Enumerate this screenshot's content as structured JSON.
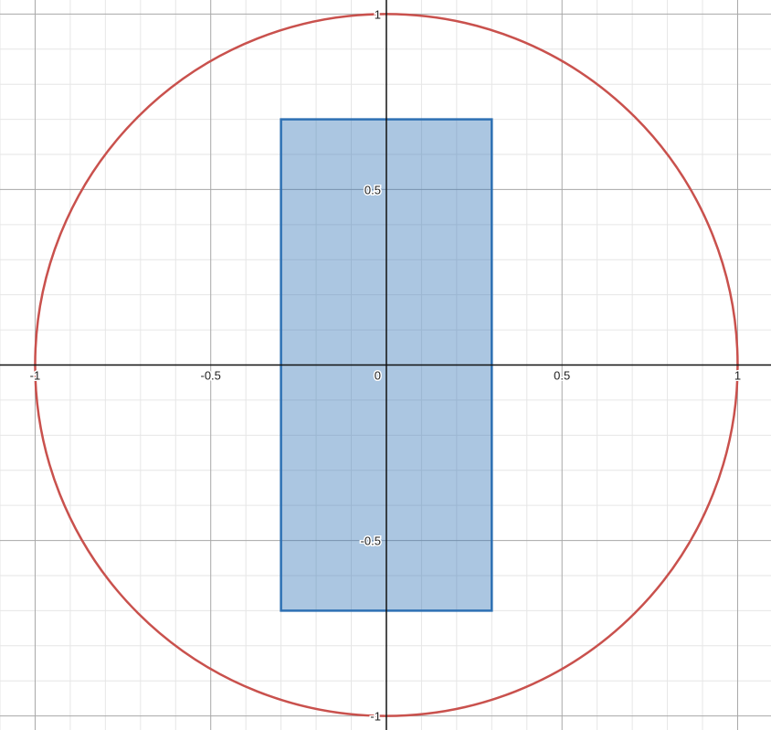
{
  "chart_data": {
    "type": "scatter",
    "title": "",
    "xlabel": "",
    "ylabel": "",
    "xlim": [
      -1.1,
      1.095
    ],
    "ylim": [
      -1.04,
      1.04
    ],
    "grid": true,
    "minor_grid_step": 0.1,
    "major_grid_step": 0.5,
    "x_ticks": [
      {
        "value": -1,
        "label": "-1"
      },
      {
        "value": -0.5,
        "label": "-0.5"
      },
      {
        "value": 0,
        "label": "0"
      },
      {
        "value": 0.5,
        "label": "0.5"
      },
      {
        "value": 1,
        "label": "1"
      }
    ],
    "y_ticks": [
      {
        "value": 1,
        "label": "1"
      },
      {
        "value": 0.5,
        "label": "0.5"
      },
      {
        "value": -0.5,
        "label": "-0.5"
      },
      {
        "value": -1,
        "label": "-1"
      }
    ],
    "shapes": [
      {
        "kind": "circle",
        "center": [
          0,
          0
        ],
        "radius": 1,
        "stroke": "#c9514d",
        "fill": "none"
      },
      {
        "kind": "rectangle",
        "x_min": -0.3,
        "x_max": 0.3,
        "y_min": -0.7,
        "y_max": 0.7,
        "stroke": "#2d70b3",
        "fill": "#2d70b3",
        "fill_opacity": 0.4
      }
    ]
  },
  "colors": {
    "background": "#ffffff",
    "minor_grid": "#e6e6e6",
    "major_grid": "#a8a8a8",
    "axis": "#111111",
    "circle": "#c9514d",
    "rectangle": "#2d70b3"
  }
}
